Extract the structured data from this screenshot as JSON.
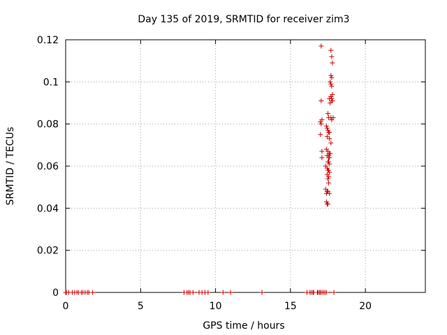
{
  "chart_data": {
    "type": "scatter",
    "title": "Day 135 of 2019, SRMTID for receiver zim3",
    "xlabel": "GPS time / hours",
    "ylabel": "SRMTID / TECUs",
    "xlim": [
      0,
      24
    ],
    "ylim": [
      0,
      0.12
    ],
    "xticks": [
      "0",
      "5",
      "10",
      "15",
      "20"
    ],
    "xtick_values": [
      0,
      5,
      10,
      15,
      20
    ],
    "yticks": [
      "0",
      "0.02",
      "0.04",
      "0.06",
      "0.08",
      "0.1",
      "0.12"
    ],
    "ytick_values": [
      0,
      0.02,
      0.04,
      0.06,
      0.08,
      0.1,
      0.12
    ],
    "grid": true,
    "marker": "plus",
    "color": "#cc0000",
    "series": [
      {
        "x": [
          0.0,
          0.05,
          0.2,
          0.45,
          0.6,
          0.75,
          0.85,
          1.05,
          1.15,
          1.3,
          1.45,
          1.55,
          1.8,
          7.9,
          8.1,
          8.2,
          8.3,
          8.5,
          8.9,
          9.1,
          9.3,
          9.5,
          10.5,
          11.0,
          13.1,
          16.1,
          16.3,
          16.4,
          16.5,
          16.55,
          16.8,
          16.85,
          16.95,
          17.0,
          17.1,
          17.2,
          17.3,
          17.4,
          17.9,
          17.05,
          17.7,
          17.75,
          17.8,
          17.7,
          17.75,
          17.65,
          17.7,
          17.75,
          17.8,
          17.7,
          17.6,
          17.75,
          17.65,
          17.7,
          17.75,
          17.8,
          17.05,
          17.0,
          17.05,
          17.1,
          17.5,
          17.55,
          17.7,
          17.75,
          17.85,
          17.4,
          17.45,
          17.5,
          17.55,
          17.6,
          17.0,
          17.45,
          17.6,
          17.7,
          17.4,
          17.5,
          17.6,
          17.55,
          17.65,
          17.1,
          17.45,
          17.55,
          17.6,
          17.1,
          17.5,
          17.55,
          17.6,
          17.35,
          17.45,
          17.5,
          17.55,
          17.6,
          17.45,
          17.55,
          17.5,
          17.55,
          17.35,
          17.45,
          17.5,
          17.4,
          17.6,
          17.4,
          17.5,
          17.45
        ],
        "y": [
          0,
          0,
          0,
          0,
          0,
          0,
          0,
          0,
          0,
          0,
          0,
          0,
          0,
          0,
          0,
          0,
          0,
          0,
          0,
          0,
          0,
          0,
          0,
          0,
          0,
          0,
          0,
          0,
          0,
          0,
          0,
          0,
          0,
          0,
          0,
          0,
          0,
          0,
          0,
          0.117,
          0.115,
          0.112,
          0.109,
          0.103,
          0.102,
          0.1,
          0.099,
          0.098,
          0.094,
          0.093,
          0.092,
          0.091,
          0.09,
          0.093,
          0.092,
          0.091,
          0.091,
          0.081,
          0.08,
          0.082,
          0.085,
          0.083,
          0.083,
          0.082,
          0.083,
          0.079,
          0.078,
          0.077,
          0.076,
          0.076,
          0.075,
          0.074,
          0.073,
          0.071,
          0.068,
          0.067,
          0.066,
          0.065,
          0.066,
          0.067,
          0.065,
          0.064,
          0.064,
          0.064,
          0.062,
          0.062,
          0.061,
          0.06,
          0.059,
          0.058,
          0.058,
          0.057,
          0.056,
          0.055,
          0.054,
          0.052,
          0.049,
          0.048,
          0.048,
          0.047,
          0.047,
          0.043,
          0.042,
          0.042
        ]
      }
    ]
  }
}
